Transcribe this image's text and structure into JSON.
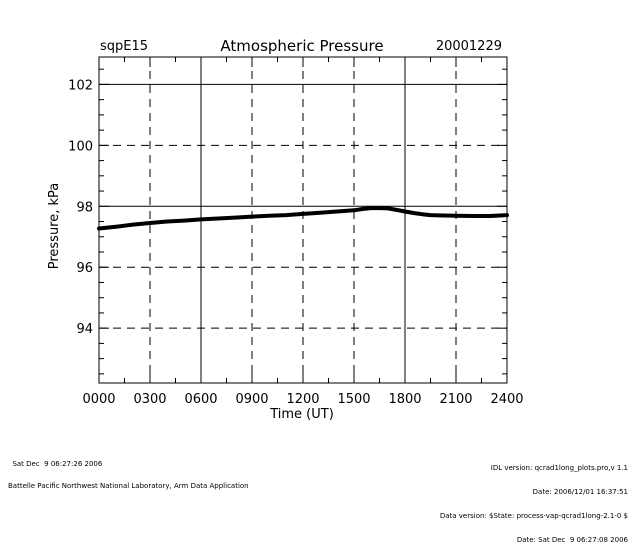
{
  "header": {
    "site": "sqpE15",
    "title": "Atmospheric Pressure",
    "date": "20001229"
  },
  "footer": {
    "left": [
      "Sat Dec  9 06:27:26 2006",
      "Battelle Pacific Northwest National Laboratory, Arm Data Application"
    ],
    "right": [
      "IDL version: qcrad1long_plots.pro,v 1.1",
      "Date: 2006/12/01 16:37:51",
      "Data version: $State: process-vap-qcrad1long-2.1-0 $",
      "Date: Sat Dec  9 06:27:08 2006"
    ]
  },
  "colors": {
    "line": "#000000",
    "background": "#ffffff"
  },
  "chart_data": {
    "type": "line",
    "title": "Atmospheric Pressure",
    "xlabel": "Time (UT)",
    "ylabel": "Pressure, kPa",
    "xlim": [
      0,
      2400
    ],
    "ylim": [
      92.2,
      102.9
    ],
    "x_ticks": [
      0,
      300,
      600,
      900,
      1200,
      1500,
      1800,
      2100,
      2400
    ],
    "x_tick_labels": [
      "0000",
      "0300",
      "0600",
      "0900",
      "1200",
      "1500",
      "1800",
      "2100",
      "2400"
    ],
    "y_ticks": [
      94,
      96,
      98,
      100,
      102
    ],
    "y_tick_labels": [
      "94",
      "96",
      "98",
      "100",
      "102"
    ],
    "grid": {
      "solid_x": [
        600,
        1800
      ],
      "dashed_x": [
        300,
        900,
        1200,
        1500,
        2100
      ],
      "solid_y": [
        98,
        102
      ],
      "dashed_y": [
        94,
        96,
        100
      ]
    },
    "series": [
      {
        "x": [
          0,
          100,
          200,
          300,
          400,
          500,
          600,
          700,
          800,
          900,
          1000,
          1100,
          1200,
          1300,
          1400,
          1500,
          1550,
          1600,
          1650,
          1700,
          1750,
          1800,
          1850,
          1900,
          1950,
          2000,
          2100,
          2200,
          2300,
          2400
        ],
        "values": [
          97.27,
          97.33,
          97.4,
          97.45,
          97.5,
          97.53,
          97.57,
          97.6,
          97.63,
          97.66,
          97.69,
          97.71,
          97.75,
          97.79,
          97.83,
          97.87,
          97.91,
          97.94,
          97.94,
          97.93,
          97.88,
          97.83,
          97.78,
          97.74,
          97.71,
          97.7,
          97.69,
          97.68,
          97.68,
          97.71
        ]
      }
    ]
  }
}
